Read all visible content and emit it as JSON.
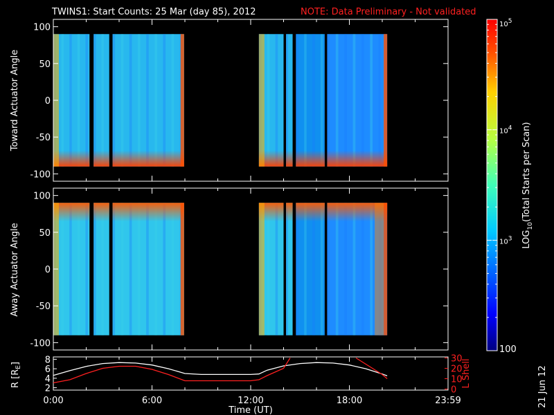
{
  "title": "TWINS1: Start Counts: 25 Mar (day  85), 2012",
  "note": "NOTE: Data Preliminary - Not validated",
  "date_stamp": "21 Jun 12",
  "colors": {
    "note": "#ff2020",
    "r_line": "#ffffff",
    "l_line": "#ff2020",
    "background": "#000000"
  },
  "chart_data": [
    {
      "type": "heatmap",
      "ylabel": "Toward Actuator Angle",
      "ylim": [
        -110,
        110
      ],
      "yticks": [
        "100",
        "50",
        "0",
        "-50",
        "-100"
      ],
      "xlim": [
        0,
        24
      ],
      "data_intervals_ut": [
        [
          0.0,
          2.2
        ],
        [
          2.45,
          3.4
        ],
        [
          3.6,
          7.95
        ],
        [
          12.5,
          14.0
        ],
        [
          14.15,
          14.55
        ],
        [
          14.75,
          16.5
        ],
        [
          16.65,
          20.3
        ]
      ],
      "angle_range": [
        -90,
        90
      ],
      "note": "counts highest (red) near -90 deg at start of each pass; mostly 10^3 (cyan/blue)"
    },
    {
      "type": "heatmap",
      "ylabel": "Away Actuator Angle",
      "ylim": [
        -110,
        110
      ],
      "yticks": [
        "100",
        "50",
        "0",
        "-50",
        "-100"
      ],
      "xlim": [
        0,
        24
      ],
      "data_intervals_ut": [
        [
          0.0,
          2.2
        ],
        [
          2.45,
          3.4
        ],
        [
          3.6,
          7.95
        ],
        [
          12.5,
          14.0
        ],
        [
          14.15,
          14.55
        ],
        [
          14.75,
          16.5
        ],
        [
          16.65,
          20.3
        ]
      ],
      "angle_range": [
        -90,
        90
      ],
      "note": "counts highest (red) near +90 deg and at end of second pass"
    },
    {
      "type": "line",
      "ylabel_left": "R [RE]",
      "ylabel_right": "L Shell",
      "yticks_left": [
        "8",
        "6",
        "4",
        "2"
      ],
      "yticks_right": [
        "30",
        "20",
        "10",
        "0"
      ],
      "ylim_left": [
        1.5,
        8.5
      ],
      "ylim_right": [
        -1,
        31
      ],
      "xlabel": "Time (UT)",
      "xticks": [
        "0:00",
        "6:00",
        "12:00",
        "18:00",
        "23:59"
      ],
      "series": [
        {
          "name": "R",
          "color": "#ffffff",
          "x": [
            0,
            1,
            2,
            3,
            4,
            5,
            6,
            7,
            8,
            9,
            10,
            11,
            12,
            12.5,
            13,
            14,
            15,
            16,
            17,
            18,
            19,
            20,
            20.3
          ],
          "y": [
            4.6,
            5.6,
            6.5,
            7.1,
            7.3,
            7.2,
            6.8,
            6.0,
            5.0,
            4.8,
            4.8,
            4.8,
            4.8,
            4.9,
            5.7,
            6.6,
            7.1,
            7.3,
            7.2,
            6.8,
            6.0,
            4.9,
            4.5
          ]
        },
        {
          "name": "L Shell",
          "color": "#ff2020",
          "x": [
            0,
            1,
            2,
            3,
            4,
            5,
            6,
            7,
            8,
            9,
            10,
            11,
            12,
            12.5,
            13,
            14,
            14.4,
            14.6,
            18,
            18.4,
            19,
            20,
            20.3
          ],
          "y": [
            6,
            9,
            15,
            20,
            22,
            22,
            19,
            14,
            8,
            8,
            8,
            8,
            8,
            9,
            13,
            20,
            30,
            null,
            null,
            30,
            24,
            14,
            10
          ]
        }
      ]
    }
  ],
  "colorbar": {
    "label": "LOG10(Total Starts per Scan)",
    "label_main": "LOG",
    "label_sub": "10",
    "label_rest": "(Total Starts per Scan)",
    "ticks": [
      {
        "value": 100,
        "label": "100"
      },
      {
        "value": 1000,
        "label_base": "10",
        "label_exp": "3"
      },
      {
        "value": 10000,
        "label_base": "10",
        "label_exp": "4"
      },
      {
        "value": 100000,
        "label_base": "10",
        "label_exp": "5"
      }
    ],
    "range": [
      100,
      100000
    ],
    "scale": "log"
  }
}
